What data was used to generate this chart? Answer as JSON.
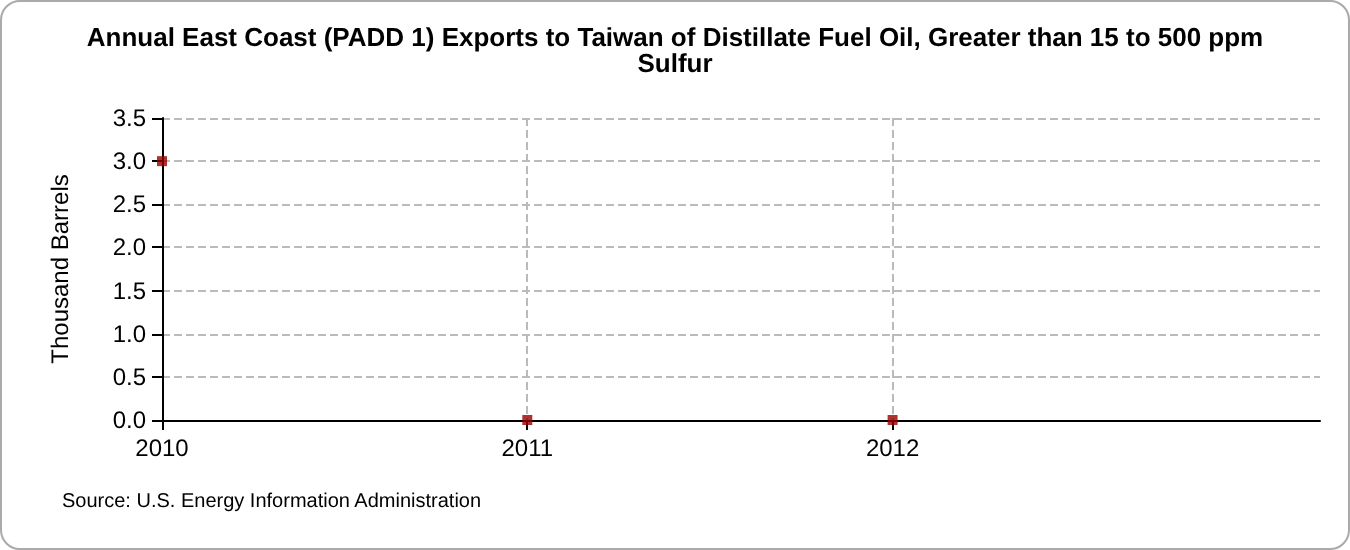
{
  "chart_data": {
    "type": "scatter",
    "title": "Annual East Coast (PADD 1) Exports to Taiwan of Distillate Fuel Oil, Greater than 15 to 500 ppm\nSulfur",
    "ylabel": "Thousand Barrels",
    "x": [
      2010,
      2011,
      2012
    ],
    "series": [
      {
        "color": "#990000",
        "values": [
          3.0,
          0,
          0
        ]
      }
    ],
    "xlim": [
      2010,
      2013.17
    ],
    "xticks": [
      2010,
      2011,
      2012
    ],
    "ylim": [
      0,
      3.5
    ],
    "yticks": [
      {
        "value": 0,
        "label": "0.0"
      },
      0.5,
      {
        "value": 1,
        "label": "1.0"
      },
      1.5,
      {
        "value": 2,
        "label": "2.0"
      },
      2.5,
      {
        "value": 3,
        "label": "3.0"
      },
      3.5
    ],
    "grid": true,
    "marker": "square",
    "annotations": [
      "Source: U.S. Energy Information Administration"
    ]
  }
}
